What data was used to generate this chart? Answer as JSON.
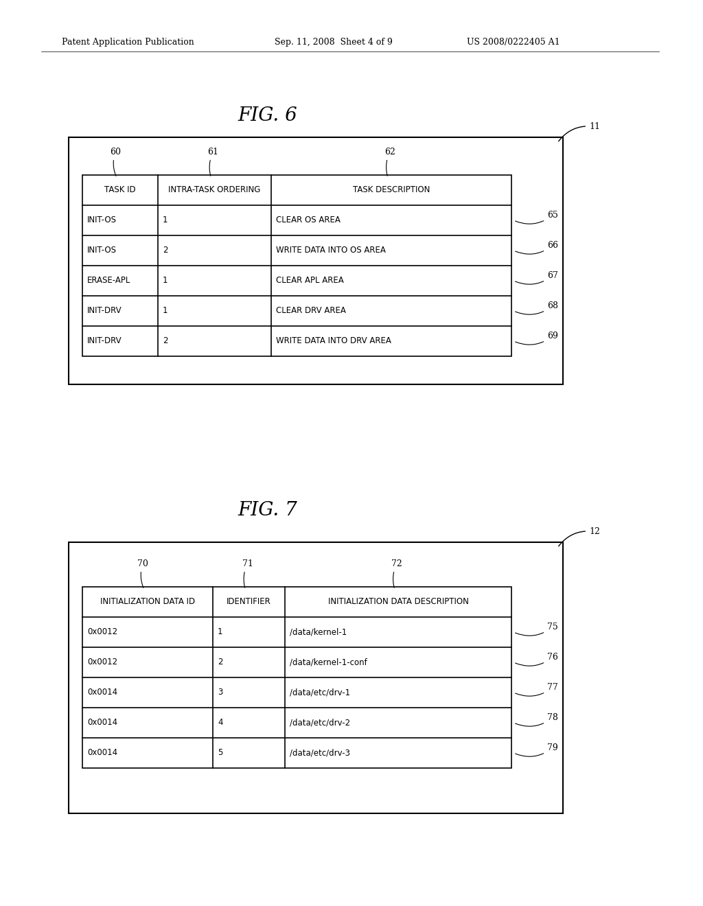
{
  "header_text_left": "Patent Application Publication",
  "header_text_mid": "Sep. 11, 2008  Sheet 4 of 9",
  "header_text_right": "US 2008/0222405 A1",
  "fig6_title": "FIG. 6",
  "fig7_title": "FIG. 7",
  "fig6_label": "11",
  "fig7_label": "12",
  "fig6_col_labels": [
    "60",
    "61",
    "62"
  ],
  "fig7_col_labels": [
    "70",
    "71",
    "72"
  ],
  "fig6_row_labels": [
    "65",
    "66",
    "67",
    "68",
    "69"
  ],
  "fig7_row_labels": [
    "75",
    "76",
    "77",
    "78",
    "79"
  ],
  "fig6_headers": [
    "TASK ID",
    "INTRA-TASK ORDERING",
    "TASK DESCRIPTION"
  ],
  "fig6_data": [
    [
      "INIT-OS",
      "1",
      "CLEAR OS AREA"
    ],
    [
      "INIT-OS",
      "2",
      "WRITE DATA INTO OS AREA"
    ],
    [
      "ERASE-APL",
      "1",
      "CLEAR APL AREA"
    ],
    [
      "INIT-DRV",
      "1",
      "CLEAR DRV AREA"
    ],
    [
      "INIT-DRV",
      "2",
      "WRITE DATA INTO DRV AREA"
    ]
  ],
  "fig7_headers": [
    "INITIALIZATION DATA ID",
    "IDENTIFIER",
    "INITIALIZATION DATA DESCRIPTION"
  ],
  "fig7_data": [
    [
      "0x0012",
      "1",
      "/data/kernel-1"
    ],
    [
      "0x0012",
      "2",
      "/data/kernel-1-conf"
    ],
    [
      "0x0014",
      "3",
      "/data/etc/drv-1"
    ],
    [
      "0x0014",
      "4",
      "/data/etc/drv-2"
    ],
    [
      "0x0014",
      "5",
      "/data/etc/drv-3"
    ]
  ],
  "bg_color": "#ffffff",
  "text_color": "#000000",
  "line_color": "#000000",
  "box_bg": "#ffffff",
  "font_size_header": 8.5,
  "font_size_cell": 8.5,
  "font_size_fig": 20,
  "font_size_label": 9,
  "font_size_patent": 9
}
